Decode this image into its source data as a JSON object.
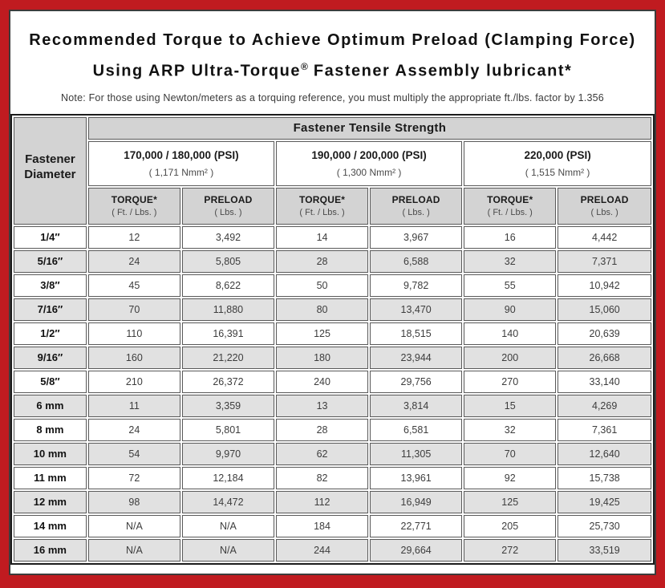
{
  "page": {
    "title_line1": "Recommended Torque to Achieve Optimum Preload (Clamping Force)",
    "title_line2_pre": "Using ARP Ultra-Torque",
    "title_reg": "®",
    "title_line2_post": " Fastener Assembly lubricant*",
    "note": "Note: For those using Newton/meters as a torquing reference, you must multiply the appropriate ft./lbs. factor by 1.356"
  },
  "colors": {
    "frame_red": "#c01b20",
    "inner_border": "#3c3c3c",
    "header_gray": "#d3d3d3",
    "alt_row_gray": "#e1e1e1"
  },
  "table": {
    "corner_header": "Fastener Diameter",
    "group_header": "Fastener Tensile Strength",
    "groups": [
      {
        "psi": "170,000 / 180,000 (PSI)",
        "nmm": "( 1,171 Nmm² )"
      },
      {
        "psi": "190,000 / 200,000 (PSI)",
        "nmm": "( 1,300 Nmm² )"
      },
      {
        "psi": "220,000 (PSI)",
        "nmm": "( 1,515 Nmm² )"
      }
    ],
    "torque": {
      "label": "TORQUE*",
      "sub": "( Ft. / Lbs. )"
    },
    "preload": {
      "label": "PRELOAD",
      "sub": "( Lbs. )"
    },
    "rows": [
      {
        "d": "1/4″",
        "v": [
          "12",
          "3,492",
          "14",
          "3,967",
          "16",
          "4,442"
        ]
      },
      {
        "d": "5/16″",
        "v": [
          "24",
          "5,805",
          "28",
          "6,588",
          "32",
          "7,371"
        ]
      },
      {
        "d": "3/8″",
        "v": [
          "45",
          "8,622",
          "50",
          "9,782",
          "55",
          "10,942"
        ]
      },
      {
        "d": "7/16″",
        "v": [
          "70",
          "11,880",
          "80",
          "13,470",
          "90",
          "15,060"
        ]
      },
      {
        "d": "1/2″",
        "v": [
          "110",
          "16,391",
          "125",
          "18,515",
          "140",
          "20,639"
        ]
      },
      {
        "d": "9/16″",
        "v": [
          "160",
          "21,220",
          "180",
          "23,944",
          "200",
          "26,668"
        ]
      },
      {
        "d": "5/8″",
        "v": [
          "210",
          "26,372",
          "240",
          "29,756",
          "270",
          "33,140"
        ]
      },
      {
        "d": "6 mm",
        "v": [
          "11",
          "3,359",
          "13",
          "3,814",
          "15",
          "4,269"
        ]
      },
      {
        "d": "8 mm",
        "v": [
          "24",
          "5,801",
          "28",
          "6,581",
          "32",
          "7,361"
        ]
      },
      {
        "d": "10 mm",
        "v": [
          "54",
          "9,970",
          "62",
          "11,305",
          "70",
          "12,640"
        ]
      },
      {
        "d": "11 mm",
        "v": [
          "72",
          "12,184",
          "82",
          "13,961",
          "92",
          "15,738"
        ]
      },
      {
        "d": "12 mm",
        "v": [
          "98",
          "14,472",
          "112",
          "16,949",
          "125",
          "19,425"
        ]
      },
      {
        "d": "14 mm",
        "v": [
          "N/A",
          "N/A",
          "184",
          "22,771",
          "205",
          "25,730"
        ]
      },
      {
        "d": "16 mm",
        "v": [
          "N/A",
          "N/A",
          "244",
          "29,664",
          "272",
          "33,519"
        ]
      }
    ]
  }
}
